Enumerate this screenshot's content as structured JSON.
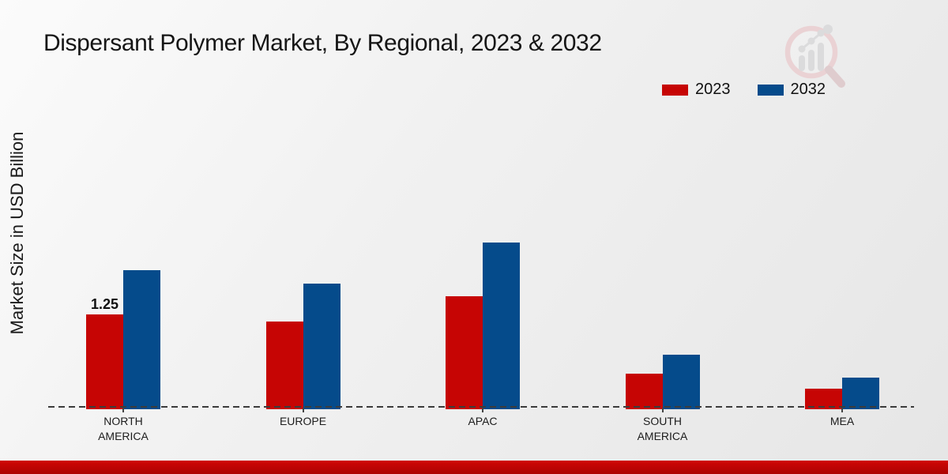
{
  "title": "Dispersant Polymer Market, By Regional, 2023 & 2032",
  "y_axis_label": "Market Size in USD Billion",
  "legend": {
    "items": [
      {
        "label": "2023",
        "color": "#c60504"
      },
      {
        "label": "2032",
        "color": "#054b8b"
      }
    ]
  },
  "branding": {
    "watermark_icon": "magnifier-bar-chart-logo",
    "footer_accent_color": "#c40504"
  },
  "chart_data": {
    "type": "bar",
    "title": "Dispersant Polymer Market, By Regional, 2023 & 2032",
    "xlabel": "",
    "ylabel": "Market Size in USD Billion",
    "categories": [
      "NORTH AMERICA",
      "EUROPE",
      "APAC",
      "SOUTH AMERICA",
      "MEA"
    ],
    "series": [
      {
        "name": "2023",
        "color": "#c60504",
        "values": [
          1.25,
          1.15,
          1.5,
          0.45,
          0.25
        ]
      },
      {
        "name": "2032",
        "color": "#054b8b",
        "values": [
          1.85,
          1.67,
          2.22,
          0.7,
          0.4
        ]
      }
    ],
    "annotations": [
      {
        "series": "2023",
        "category": "NORTH AMERICA",
        "text": "1.25"
      }
    ],
    "ylim": [
      0,
      2.5
    ],
    "grid": false,
    "y_axis_ticks_visible": false,
    "baseline_style": "dashed",
    "legend_position": "top-right"
  }
}
